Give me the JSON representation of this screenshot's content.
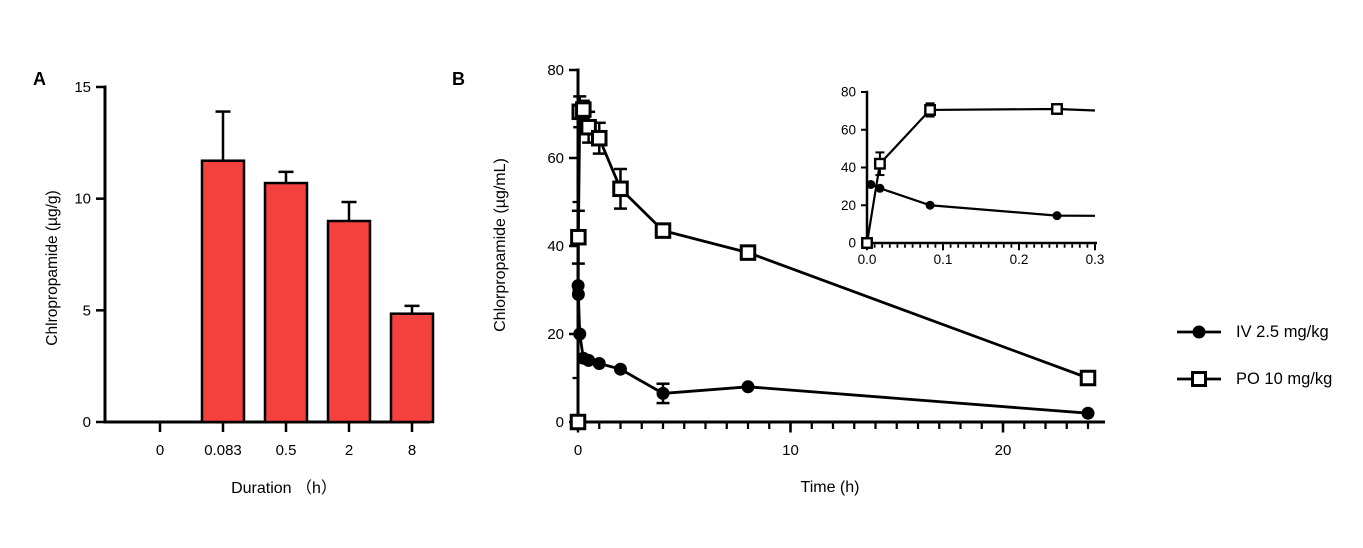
{
  "panels": {
    "a": {
      "label": "A"
    },
    "b": {
      "label": "B"
    }
  },
  "legend": {
    "entries": [
      {
        "label": "IV 2.5 mg/kg",
        "marker": "filled-circle"
      },
      {
        "label": "PO 10 mg/kg",
        "marker": "open-square"
      }
    ]
  },
  "colors": {
    "bar_fill": "#F5413E",
    "stroke": "#000000",
    "background": "#FFFFFF"
  },
  "chart_data": [
    {
      "id": "panel-a",
      "type": "bar",
      "title": "",
      "categories": [
        "0",
        "0.083",
        "0.5",
        "2",
        "8"
      ],
      "values": [
        0,
        11.7,
        10.7,
        9.0,
        4.85
      ],
      "errors": [
        0,
        2.2,
        0.5,
        0.85,
        0.35
      ],
      "xlabel": "Duration （h）",
      "ylabel": "Chlropropamide (µg/g)",
      "ylim": [
        0,
        15
      ],
      "yticks": [
        0,
        5,
        10,
        15
      ],
      "grid": false,
      "bar_color": "#F5413E"
    },
    {
      "id": "panel-b",
      "type": "line",
      "title": "",
      "xlabel": "Time (h)",
      "ylabel": "Chlorpropamide (µg/mL)",
      "xlim": [
        0,
        24.8
      ],
      "ylim": [
        0,
        80
      ],
      "xticks": [
        "0",
        "10",
        "20"
      ],
      "xtick_values": [
        0,
        10,
        20
      ],
      "x_minor_step": 1,
      "yticks": [
        0,
        20,
        40,
        60,
        80
      ],
      "y_minor_step": 10,
      "grid": false,
      "legend_position": "right-outside",
      "series": [
        {
          "name": "IV 2.5 mg/kg",
          "marker": "filled-circle",
          "x": [
            0.005,
            0.017,
            0.083,
            0.25,
            0.5,
            1,
            2,
            4,
            8,
            24
          ],
          "y": [
            31,
            29,
            20,
            14.5,
            14,
            13.3,
            12,
            6.5,
            8,
            2
          ],
          "err": [
            0,
            0,
            0,
            0,
            0,
            0,
            0,
            2.2,
            0,
            0
          ]
        },
        {
          "name": "PO 10 mg/kg",
          "marker": "open-square",
          "x": [
            0,
            0.017,
            0.083,
            0.25,
            0.5,
            1,
            2,
            4,
            8,
            24
          ],
          "y": [
            0,
            42,
            70.5,
            71,
            67,
            64.5,
            53,
            43.5,
            38.5,
            10
          ],
          "err": [
            0,
            6,
            3.5,
            2,
            3.5,
            3.5,
            4.5,
            0,
            0,
            0
          ]
        }
      ],
      "inset": {
        "xlim": [
          0,
          0.3
        ],
        "ylim": [
          0,
          80
        ],
        "xticks": [
          "0.0",
          "0.1",
          "0.2",
          "0.3"
        ],
        "xtick_values": [
          0,
          0.1,
          0.2,
          0.3
        ],
        "x_minor_step": 0.01,
        "yticks": [
          0,
          20,
          40,
          60,
          80
        ]
      }
    }
  ]
}
